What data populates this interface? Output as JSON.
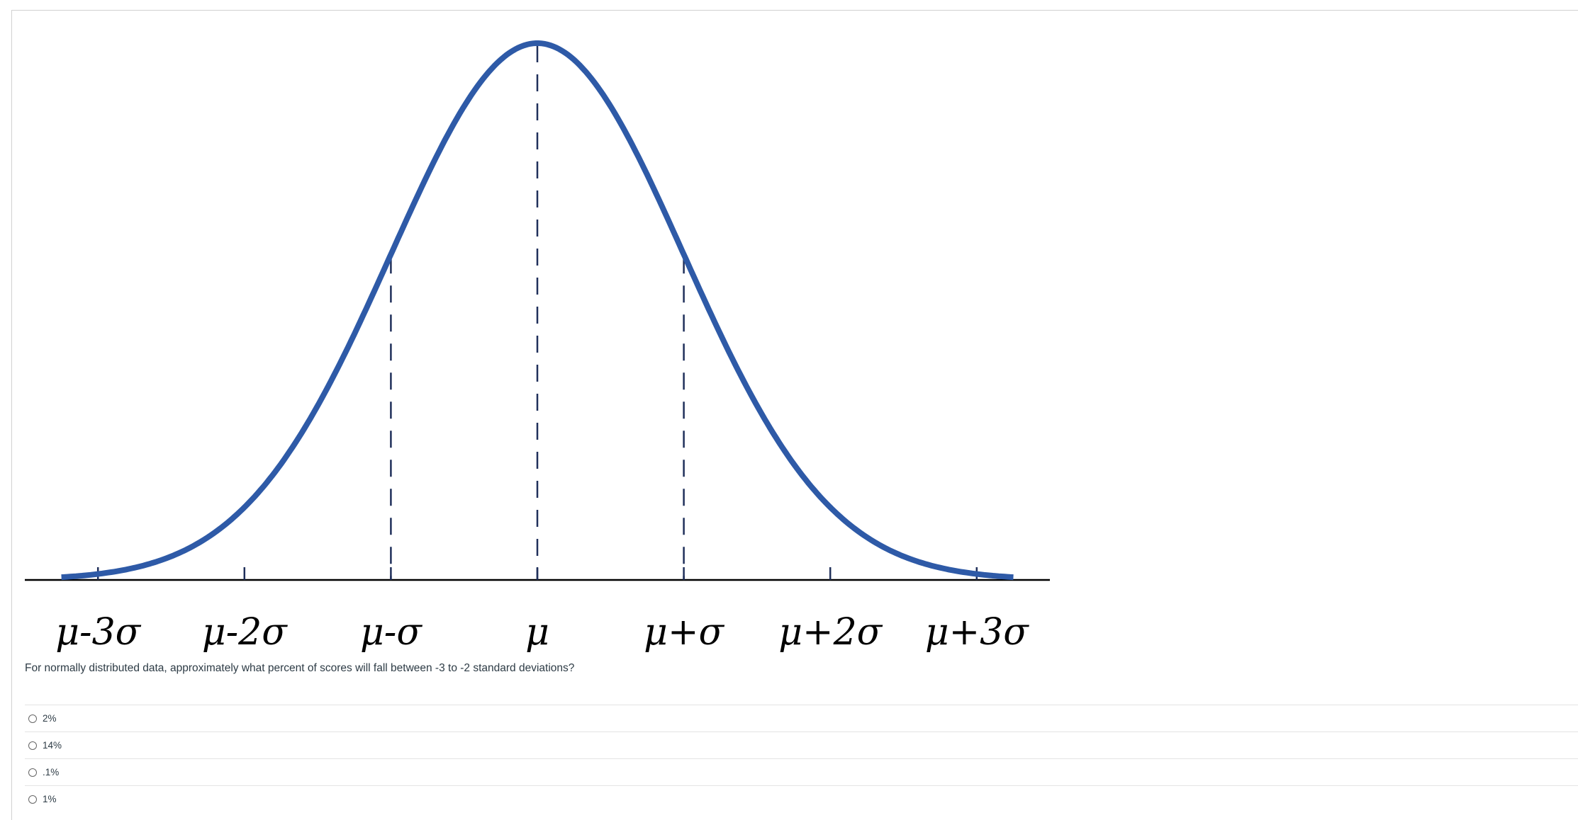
{
  "figure": {
    "axis_labels": [
      "μ-3σ",
      "μ-2σ",
      "μ-σ",
      "μ",
      "μ+σ",
      "μ+2σ",
      "μ+3σ"
    ]
  },
  "question": "For normally distributed data, approximately what percent of scores will fall between -3 to -2 standard deviations?",
  "options": [
    "2%",
    "14%",
    ".1%",
    "1%"
  ]
}
